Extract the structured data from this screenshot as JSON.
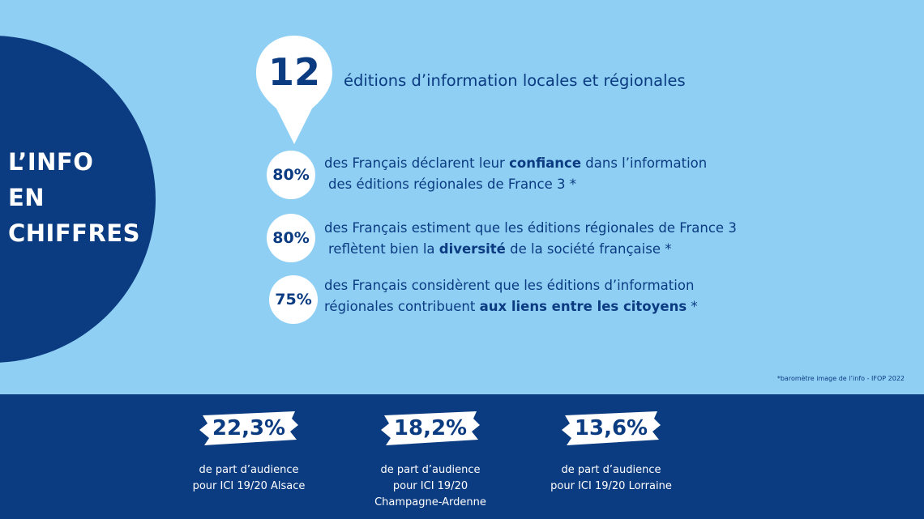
{
  "title": {
    "line1": "L’INFO",
    "line2": "EN",
    "line3": "CHIFFRES"
  },
  "headline": {
    "number": "12",
    "text": "éditions d’information locales et régionales"
  },
  "stats": [
    {
      "value": "80%",
      "line1_pre": "des Français déclarent leur ",
      "line1_bold": "confiance",
      "line1_post": " dans l’information",
      "line2_pre": "des éditions régionales de France 3 *",
      "line2_bold": "",
      "line2_post": ""
    },
    {
      "value": "80%",
      "line1_pre": "des Français estiment que les éditions régionales de France 3",
      "line1_bold": "",
      "line1_post": "",
      "line2_pre": "reflètent bien la ",
      "line2_bold": "diversité",
      "line2_post": " de la société française *"
    },
    {
      "value": "75%",
      "line1_pre": "des Français considèrent que les éditions d’information",
      "line1_bold": "",
      "line1_post": "",
      "line2_pre": "régionales contribuent ",
      "line2_bold": "aux liens entre les citoyens",
      "line2_post": " *"
    }
  ],
  "footnote": "*baromètre image de l’info - IFOP 2022",
  "audiences": [
    {
      "value": "22,3%",
      "line1": "de part d’audience",
      "line2": "pour ICI 19/20 Alsace",
      "line3": ""
    },
    {
      "value": "18,2%",
      "line1": "de part d’audience",
      "line2": "pour ICI 19/20",
      "line3": "Champagne-Ardenne"
    },
    {
      "value": "13,6%",
      "line1": "de part d’audience",
      "line2": "pour ICI 19/20 Lorraine",
      "line3": ""
    }
  ],
  "colors": {
    "navy": "#0b3b80",
    "sky": "#8fcff4",
    "white": "#ffffff"
  },
  "icons": {
    "pin": "location-pin-icon",
    "brush": "brush-stroke-icon"
  }
}
